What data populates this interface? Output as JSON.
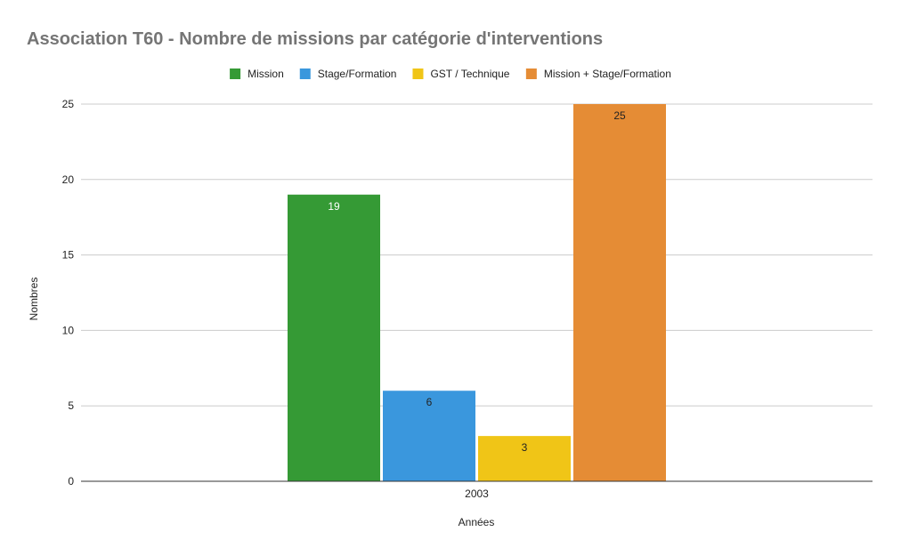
{
  "chart_data": {
    "type": "bar",
    "title": "Association T60 - Nombre de missions par catégorie d'interventions",
    "xlabel": "Années",
    "ylabel": "Nombres",
    "categories": [
      "2003"
    ],
    "series": [
      {
        "name": "Mission",
        "values": [
          19
        ],
        "color": "#359a35",
        "label_color": "#ffffff"
      },
      {
        "name": "Stage/Formation",
        "values": [
          6
        ],
        "color": "#3a97dd",
        "label_color": "#222222"
      },
      {
        "name": "GST / Technique",
        "values": [
          3
        ],
        "color": "#f0c517",
        "label_color": "#222222"
      },
      {
        "name": "Mission + Stage/Formation",
        "values": [
          25
        ],
        "color": "#e58c35",
        "label_color": "#222222"
      }
    ],
    "ylim": [
      0,
      25
    ],
    "yticks": [
      0,
      5,
      10,
      15,
      20,
      25
    ],
    "grid": true,
    "legend_position": "top-center",
    "data_labels": true
  }
}
